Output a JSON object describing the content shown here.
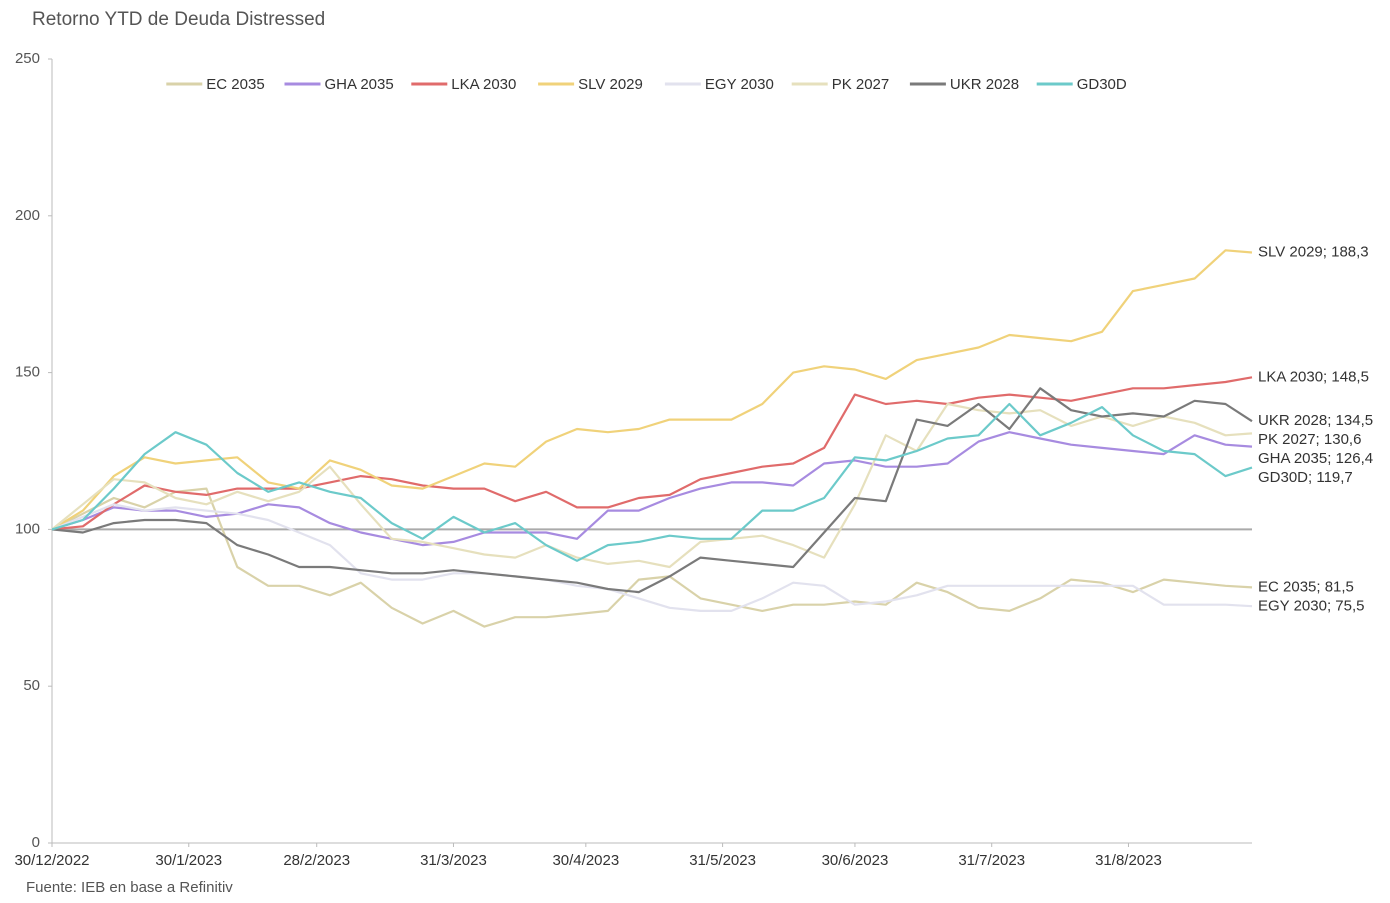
{
  "chart_data": {
    "type": "line",
    "title": "Retorno YTD de Deuda Distressed",
    "source": "Fuente: IEB en base a Refinitiv",
    "x": [
      "2022-12-30",
      "2023-01-06",
      "2023-01-13",
      "2023-01-20",
      "2023-01-27",
      "2023-02-03",
      "2023-02-10",
      "2023-02-17",
      "2023-02-24",
      "2023-03-03",
      "2023-03-10",
      "2023-03-17",
      "2023-03-24",
      "2023-03-31",
      "2023-04-07",
      "2023-04-14",
      "2023-04-21",
      "2023-04-28",
      "2023-05-05",
      "2023-05-12",
      "2023-05-19",
      "2023-05-26",
      "2023-06-02",
      "2023-06-09",
      "2023-06-16",
      "2023-06-23",
      "2023-06-30",
      "2023-07-07",
      "2023-07-14",
      "2023-07-21",
      "2023-07-28",
      "2023-08-04",
      "2023-08-11",
      "2023-08-18",
      "2023-08-25",
      "2023-09-01",
      "2023-09-08",
      "2023-09-15",
      "2023-09-22",
      "2023-09-28"
    ],
    "xlim": [
      "2022-12-30",
      "2023-09-28"
    ],
    "xticks": [
      {
        "value": "2022-12-30",
        "label": "30/12/2022"
      },
      {
        "value": "2023-01-30",
        "label": "30/1/2023"
      },
      {
        "value": "2023-02-28",
        "label": "28/2/2023"
      },
      {
        "value": "2023-03-31",
        "label": "31/3/2023"
      },
      {
        "value": "2023-04-30",
        "label": "30/4/2023"
      },
      {
        "value": "2023-05-31",
        "label": "31/5/2023"
      },
      {
        "value": "2023-06-30",
        "label": "30/6/2023"
      },
      {
        "value": "2023-07-31",
        "label": "31/7/2023"
      },
      {
        "value": "2023-08-31",
        "label": "31/8/2023"
      }
    ],
    "ylim": [
      0,
      250
    ],
    "yticks": [
      0,
      50,
      100,
      150,
      200,
      250
    ],
    "grid": false,
    "reference_line": 100,
    "legend": "top",
    "series": [
      {
        "name": "EC 2035",
        "color": "#d9d2a9",
        "end_label": "EC 2035; 81,5",
        "values": [
          100,
          105,
          110,
          107,
          112,
          113,
          88,
          82,
          82,
          79,
          83,
          75,
          70,
          74,
          69,
          72,
          72,
          73,
          74,
          84,
          85,
          78,
          76,
          74,
          76,
          76,
          77,
          76,
          83,
          80,
          75,
          74,
          78,
          84,
          83,
          80,
          84,
          83,
          82,
          81.5
        ]
      },
      {
        "name": "GHA 2035",
        "color": "#a78be0",
        "end_label": "GHA 2035; 126,4",
        "values": [
          100,
          103,
          107,
          106,
          106,
          104,
          105,
          108,
          107,
          102,
          99,
          97,
          95,
          96,
          99,
          99,
          99,
          97,
          106,
          106,
          110,
          113,
          115,
          115,
          114,
          121,
          122,
          120,
          120,
          121,
          128,
          131,
          129,
          127,
          126,
          125,
          124,
          130,
          127,
          126.4
        ]
      },
      {
        "name": "LKA 2030",
        "color": "#e06b6b",
        "end_label": "LKA 2030; 148,5",
        "values": [
          100,
          101,
          108,
          114,
          112,
          111,
          113,
          113,
          113,
          115,
          117,
          116,
          114,
          113,
          113,
          109,
          112,
          107,
          107,
          110,
          111,
          116,
          118,
          120,
          121,
          126,
          143,
          140,
          141,
          140,
          142,
          143,
          142,
          141,
          143,
          145,
          145,
          146,
          147,
          148.5
        ]
      },
      {
        "name": "SLV 2029",
        "color": "#f0d27a",
        "end_label": "SLV 2029; 188,3",
        "values": [
          100,
          106,
          117,
          123,
          121,
          122,
          123,
          115,
          113,
          122,
          119,
          114,
          113,
          117,
          121,
          120,
          128,
          132,
          131,
          132,
          135,
          135,
          135,
          140,
          150,
          152,
          151,
          148,
          154,
          156,
          158,
          162,
          161,
          160,
          163,
          176,
          178,
          180,
          189,
          188.3
        ]
      },
      {
        "name": "EGY 2030",
        "color": "#e2e2ee",
        "end_label": "EGY 2030; 75,5",
        "values": [
          100,
          104,
          108,
          106,
          107,
          106,
          105,
          103,
          99,
          95,
          86,
          84,
          84,
          86,
          86,
          85,
          84,
          82,
          81,
          78,
          75,
          74,
          74,
          78,
          83,
          82,
          76,
          77,
          79,
          82,
          82,
          82,
          82,
          82,
          82,
          82,
          76,
          76,
          76,
          75.5
        ]
      },
      {
        "name": "PK 2027",
        "color": "#e6e0bd",
        "end_label": "PK 2027; 130,6",
        "values": [
          100,
          108,
          116,
          115,
          110,
          108,
          112,
          109,
          112,
          120,
          108,
          97,
          96,
          94,
          92,
          91,
          95,
          91,
          89,
          90,
          88,
          96,
          97,
          98,
          95,
          91,
          108,
          130,
          125,
          140,
          138,
          137,
          138,
          133,
          136,
          133,
          136,
          134,
          130,
          130.6
        ]
      },
      {
        "name": "UKR 2028",
        "color": "#7a7a7a",
        "end_label": "UKR 2028; 134,5",
        "values": [
          100,
          99,
          102,
          103,
          103,
          102,
          95,
          92,
          88,
          88,
          87,
          86,
          86,
          87,
          86,
          85,
          84,
          83,
          81,
          80,
          85,
          91,
          90,
          89,
          88,
          99,
          110,
          109,
          135,
          133,
          140,
          132,
          145,
          138,
          136,
          137,
          136,
          141,
          140,
          134.5
        ]
      },
      {
        "name": "GD30D",
        "color": "#6ccaca",
        "end_label": "GD30D; 119,7",
        "values": [
          100,
          103,
          113,
          124,
          131,
          127,
          118,
          112,
          115,
          112,
          110,
          102,
          97,
          104,
          99,
          102,
          95,
          90,
          95,
          96,
          98,
          97,
          97,
          106,
          106,
          110,
          123,
          122,
          125,
          129,
          130,
          140,
          130,
          134,
          139,
          130,
          125,
          124,
          117,
          119.7
        ]
      }
    ]
  }
}
